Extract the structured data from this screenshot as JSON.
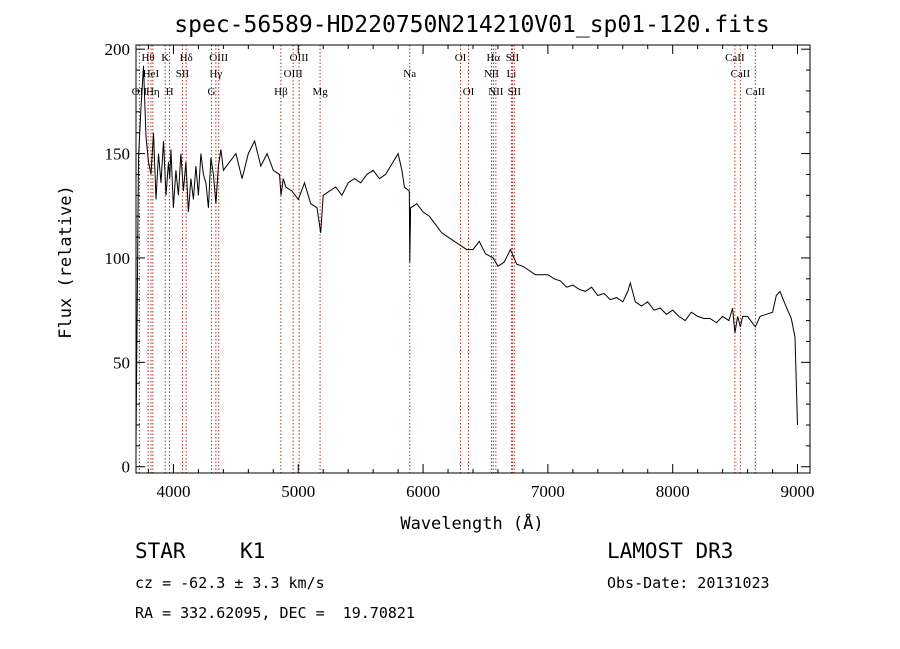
{
  "chart_data": {
    "type": "line",
    "title": "spec-56589-HD220750N214210V01_sp01-120.fits",
    "xlabel": "Wavelength (Å)",
    "ylabel": "Flux (relative)",
    "xlim": [
      3700,
      9100
    ],
    "ylim": [
      -3,
      202
    ],
    "xticks": [
      4000,
      5000,
      6000,
      7000,
      8000,
      9000
    ],
    "yticks": [
      0,
      50,
      100,
      150,
      200
    ],
    "grid": false,
    "series": [
      {
        "name": "flux",
        "x": [
          3700,
          3720,
          3740,
          3760,
          3780,
          3800,
          3820,
          3840,
          3860,
          3880,
          3900,
          3920,
          3940,
          3960,
          3970,
          3980,
          4000,
          4020,
          4040,
          4060,
          4080,
          4100,
          4120,
          4140,
          4160,
          4180,
          4200,
          4220,
          4240,
          4260,
          4280,
          4300,
          4320,
          4340,
          4360,
          4380,
          4400,
          4450,
          4500,
          4550,
          4600,
          4650,
          4700,
          4750,
          4800,
          4850,
          4862,
          4880,
          4900,
          4950,
          5000,
          5050,
          5100,
          5150,
          5180,
          5200,
          5250,
          5300,
          5350,
          5400,
          5450,
          5500,
          5550,
          5600,
          5650,
          5700,
          5750,
          5800,
          5830,
          5850,
          5890,
          5894,
          5900,
          5950,
          6000,
          6050,
          6100,
          6150,
          6200,
          6250,
          6300,
          6350,
          6400,
          6450,
          6500,
          6563,
          6600,
          6650,
          6700,
          6750,
          6800,
          6850,
          6900,
          6950,
          7000,
          7050,
          7100,
          7150,
          7200,
          7250,
          7300,
          7350,
          7400,
          7450,
          7500,
          7550,
          7600,
          7640,
          7660,
          7700,
          7750,
          7800,
          7850,
          7900,
          7950,
          8000,
          8050,
          8100,
          8150,
          8200,
          8250,
          8300,
          8350,
          8400,
          8450,
          8480,
          8498,
          8520,
          8542,
          8560,
          8600,
          8662,
          8700,
          8750,
          8800,
          8830,
          8860,
          8900,
          8950,
          8980,
          9000
        ],
        "values": [
          10,
          148,
          172,
          192,
          158,
          146,
          140,
          160,
          128,
          150,
          136,
          156,
          130,
          146,
          138,
          152,
          124,
          142,
          130,
          150,
          132,
          146,
          122,
          138,
          128,
          144,
          130,
          150,
          140,
          136,
          124,
          148,
          140,
          126,
          144,
          152,
          142,
          146,
          150,
          138,
          150,
          156,
          144,
          150,
          142,
          140,
          130,
          138,
          134,
          132,
          128,
          136,
          126,
          124,
          112,
          130,
          132,
          134,
          130,
          136,
          138,
          136,
          140,
          142,
          138,
          140,
          145,
          150,
          142,
          134,
          132,
          98,
          124,
          126,
          122,
          120,
          116,
          112,
          110,
          108,
          106,
          104,
          104,
          108,
          102,
          100,
          96,
          98,
          104,
          97,
          96,
          94,
          92,
          92,
          92,
          90,
          89,
          86,
          87,
          85,
          84,
          86,
          82,
          83,
          80,
          81,
          79,
          84,
          88,
          79,
          77,
          79,
          75,
          76,
          73,
          75,
          72,
          70,
          74,
          72,
          71,
          71,
          69,
          72,
          70,
          76,
          64,
          72,
          67,
          72,
          72,
          67,
          72,
          73,
          74,
          82,
          84,
          78,
          71,
          62,
          20
        ]
      }
    ],
    "line_markers": [
      {
        "label": "Hθ",
        "x": 3797,
        "row": 1
      },
      {
        "label": "OII",
        "x": 3727,
        "row": 3
      },
      {
        "label": "HeI",
        "x": 3820,
        "row": 2
      },
      {
        "label": "Hη",
        "x": 3835,
        "row": 3
      },
      {
        "label": "K",
        "x": 3934,
        "row": 1
      },
      {
        "label": "H",
        "x": 3969,
        "row": 3
      },
      {
        "label": "SII",
        "x": 4072,
        "row": 2
      },
      {
        "label": "Hδ",
        "x": 4102,
        "row": 1
      },
      {
        "label": "OIII",
        "x": 4363,
        "row": 1
      },
      {
        "label": "Hγ",
        "x": 4340,
        "row": 2
      },
      {
        "label": "G",
        "x": 4305,
        "row": 3
      },
      {
        "label": "Hβ",
        "x": 4861,
        "row": 3
      },
      {
        "label": "OIII",
        "x": 5007,
        "row": 1
      },
      {
        "label": "OIII",
        "x": 4959,
        "row": 2
      },
      {
        "label": "Mg",
        "x": 5175,
        "row": 3
      },
      {
        "label": "Na",
        "x": 5893,
        "row": 2
      },
      {
        "label": "OI",
        "x": 6300,
        "row": 1
      },
      {
        "label": "OI",
        "x": 6364,
        "row": 3
      },
      {
        "label": "Hα",
        "x": 6563,
        "row": 1
      },
      {
        "label": "NII",
        "x": 6548,
        "row": 2
      },
      {
        "label": "NII",
        "x": 6583,
        "row": 3
      },
      {
        "label": "SII",
        "x": 6716,
        "row": 1
      },
      {
        "label": "Li",
        "x": 6708,
        "row": 2
      },
      {
        "label": "SII",
        "x": 6731,
        "row": 3
      },
      {
        "label": "CaII",
        "x": 8498,
        "row": 1
      },
      {
        "label": "CaII",
        "x": 8542,
        "row": 2
      },
      {
        "label": "CaII",
        "x": 8662,
        "row": 3
      }
    ]
  },
  "info": {
    "object_class": "STAR",
    "subclass": "K1",
    "survey": "LAMOST DR3",
    "velocity": "cz = -62.3 ± 3.3 km/s",
    "obs_date": "Obs-Date: 20131023",
    "coords": "RA = 332.62095, DEC =  19.70821"
  },
  "colors": {
    "line": "#000000",
    "marker": "#b0302a"
  }
}
